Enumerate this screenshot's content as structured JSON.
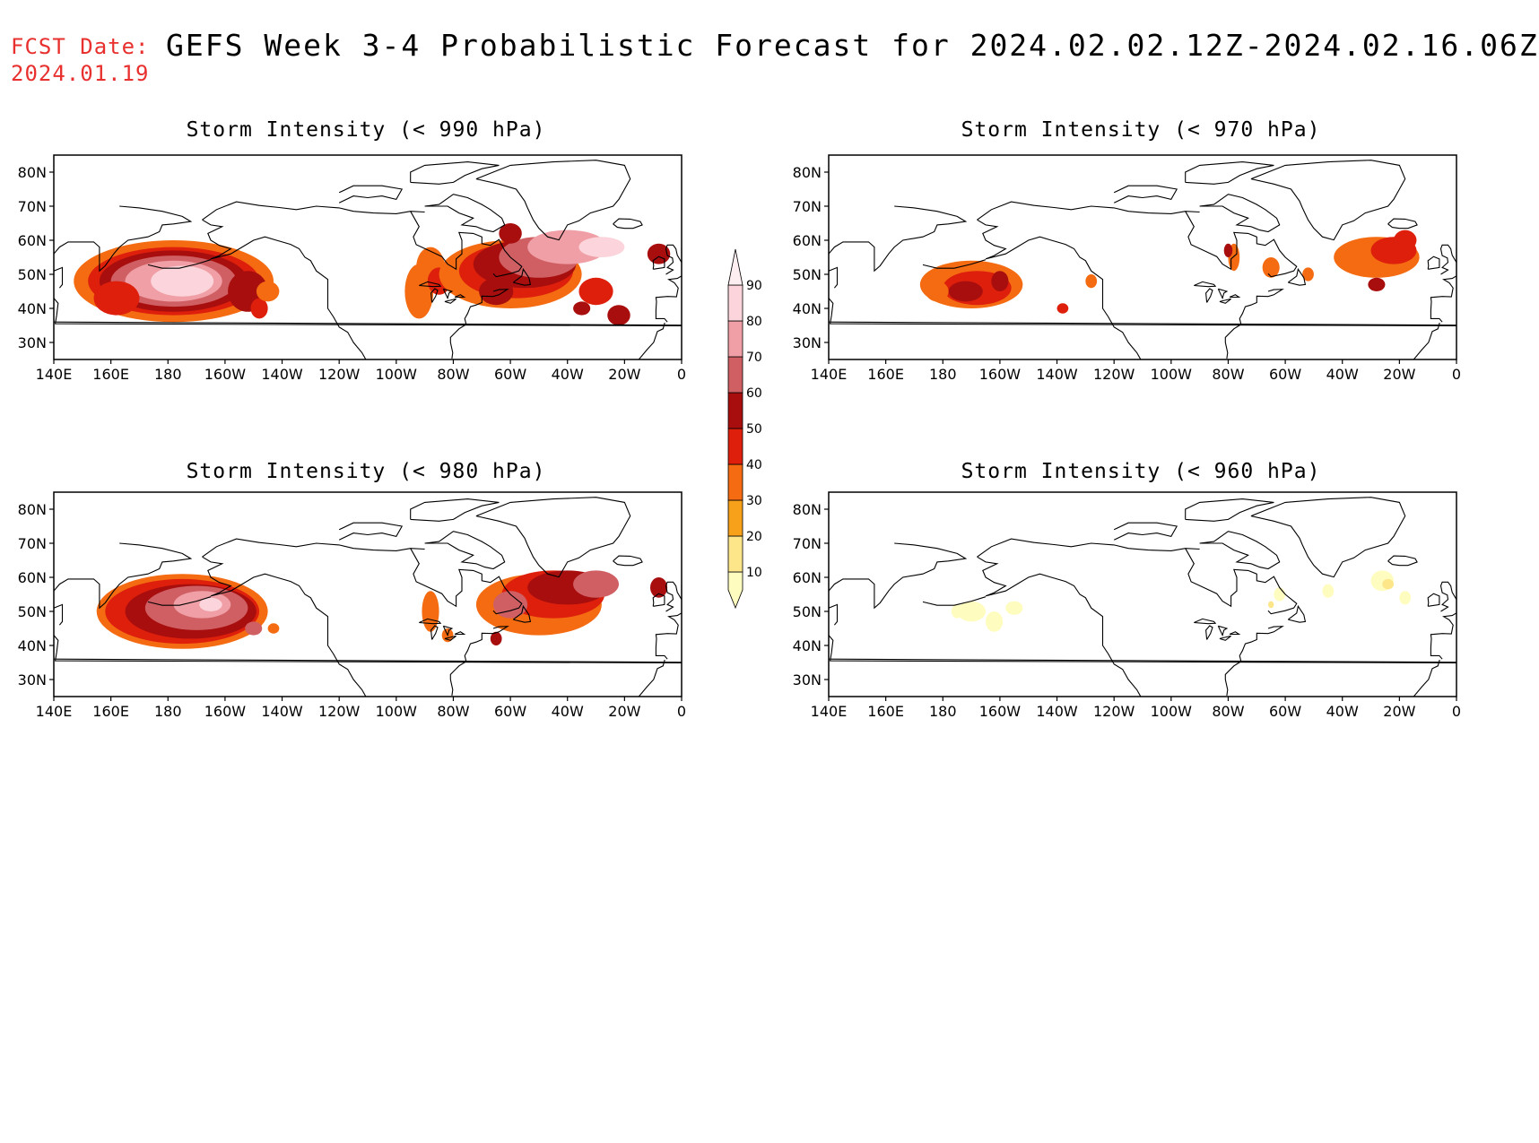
{
  "header": {
    "fcst_label": "FCST Date:",
    "fcst_date": "2024.01.19",
    "title": "GEFS Week 3-4 Probabilistic Forecast for 2024.02.02.12Z-2024.02.16.06Z"
  },
  "panels": [
    {
      "title": "Storm Intensity (< 990 hPa)"
    },
    {
      "title": "Storm Intensity (< 970 hPa)"
    },
    {
      "title": "Storm Intensity (< 980 hPa)"
    },
    {
      "title": "Storm Intensity (< 960 hPa)"
    }
  ],
  "axes": {
    "lat_labels": [
      "80N",
      "70N",
      "60N",
      "50N",
      "40N",
      "30N"
    ],
    "lon_labels": [
      "140E",
      "160E",
      "180",
      "160W",
      "140W",
      "120W",
      "100W",
      "80W",
      "60W",
      "40W",
      "20W",
      "0"
    ]
  },
  "colorbar": {
    "levels": [
      "10",
      "20",
      "30",
      "40",
      "50",
      "60",
      "70",
      "80",
      "90"
    ],
    "colors": [
      "#fffcbf",
      "#fde68a",
      "#f7a11a",
      "#f46b12",
      "#dd1f0c",
      "#a80e0e",
      "#cf5f63",
      "#ef9fa5",
      "#fbd5db",
      "#fdeef1"
    ]
  },
  "colors": {
    "fcst": "#e8312e",
    "coast": "#000000"
  }
}
